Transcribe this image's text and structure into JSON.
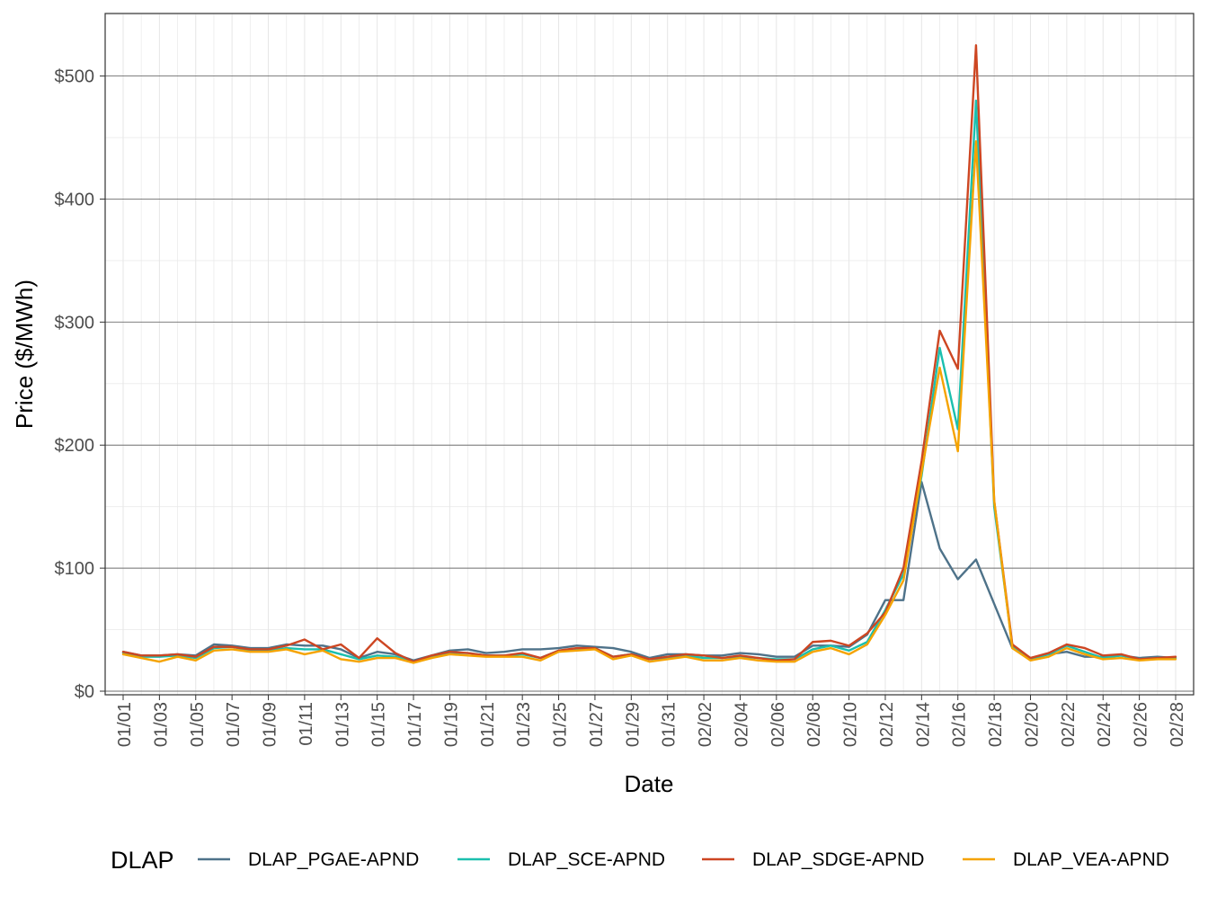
{
  "chart_data": {
    "type": "line",
    "xlabel": "Date",
    "ylabel": "Price ($/MWh)",
    "ylim": [
      0,
      550
    ],
    "y_ticks": [
      0,
      100,
      200,
      300,
      400,
      500
    ],
    "y_tick_labels": [
      "$0",
      "$100",
      "$200",
      "$300",
      "$400",
      "$500"
    ],
    "x_tick_labels": [
      "01/01",
      "01/03",
      "01/05",
      "01/07",
      "01/09",
      "01/11",
      "01/13",
      "01/15",
      "01/17",
      "01/19",
      "01/21",
      "01/23",
      "01/25",
      "01/27",
      "01/29",
      "01/31",
      "02/02",
      "02/04",
      "02/06",
      "02/08",
      "02/10",
      "02/12",
      "02/14",
      "02/16",
      "02/18",
      "02/20",
      "02/22",
      "02/24",
      "02/26",
      "02/28"
    ],
    "x": [
      "01/01",
      "01/02",
      "01/03",
      "01/04",
      "01/05",
      "01/06",
      "01/07",
      "01/08",
      "01/09",
      "01/10",
      "01/11",
      "01/12",
      "01/13",
      "01/14",
      "01/15",
      "01/16",
      "01/17",
      "01/18",
      "01/19",
      "01/20",
      "01/21",
      "01/22",
      "01/23",
      "01/24",
      "01/25",
      "01/26",
      "01/27",
      "01/28",
      "01/29",
      "01/30",
      "01/31",
      "02/01",
      "02/02",
      "02/03",
      "02/04",
      "02/05",
      "02/06",
      "02/07",
      "02/08",
      "02/09",
      "02/10",
      "02/11",
      "02/12",
      "02/13",
      "02/14",
      "02/15",
      "02/16",
      "02/17",
      "02/18",
      "02/19",
      "02/20",
      "02/21",
      "02/22",
      "02/23",
      "02/24",
      "02/25",
      "02/26",
      "02/27",
      "02/28"
    ],
    "grid": true,
    "legend_position": "bottom",
    "legend_title": "DLAP",
    "series": [
      {
        "name": "DLAP_PGAE-APND",
        "color": "#4e7289",
        "values": [
          32,
          29,
          29,
          30,
          29,
          38,
          37,
          35,
          35,
          38,
          37,
          37,
          34,
          27,
          32,
          30,
          25,
          29,
          33,
          34,
          31,
          32,
          34,
          34,
          35,
          37,
          36,
          35,
          32,
          27,
          30,
          30,
          29,
          29,
          31,
          30,
          28,
          28,
          37,
          37,
          36,
          46,
          74,
          74,
          170,
          116,
          91,
          107,
          71,
          35,
          27,
          30,
          32,
          28,
          28,
          29,
          27,
          28,
          27
        ]
      },
      {
        "name": "DLAP_SCE-APND",
        "color": "#1bbfae",
        "values": [
          31,
          28,
          28,
          29,
          27,
          35,
          36,
          33,
          33,
          35,
          34,
          34,
          30,
          26,
          29,
          28,
          24,
          28,
          31,
          31,
          29,
          29,
          30,
          27,
          33,
          34,
          35,
          28,
          30,
          26,
          27,
          29,
          27,
          27,
          28,
          27,
          26,
          26,
          34,
          37,
          33,
          40,
          66,
          95,
          175,
          279,
          213,
          480,
          150,
          37,
          26,
          30,
          37,
          32,
          27,
          29,
          26,
          27,
          27
        ]
      },
      {
        "name": "DLAP_SDGE-APND",
        "color": "#cd4622",
        "values": [
          32,
          29,
          29,
          30,
          28,
          36,
          36,
          34,
          34,
          37,
          42,
          34,
          38,
          27,
          43,
          31,
          24,
          29,
          32,
          31,
          29,
          29,
          31,
          27,
          33,
          35,
          35,
          28,
          30,
          26,
          28,
          30,
          29,
          27,
          29,
          27,
          25,
          26,
          40,
          41,
          37,
          47,
          64,
          100,
          187,
          293,
          262,
          525,
          155,
          38,
          27,
          31,
          38,
          35,
          29,
          30,
          26,
          27,
          28
        ]
      },
      {
        "name": "DLAP_VEA-APND",
        "color": "#f5a300",
        "values": [
          30,
          27,
          24,
          28,
          25,
          33,
          34,
          32,
          32,
          34,
          30,
          33,
          26,
          24,
          27,
          27,
          23,
          27,
          30,
          29,
          28,
          28,
          28,
          25,
          32,
          33,
          34,
          26,
          29,
          24,
          26,
          28,
          25,
          25,
          27,
          25,
          24,
          24,
          32,
          35,
          30,
          38,
          62,
          90,
          178,
          263,
          195,
          447,
          155,
          35,
          25,
          28,
          35,
          30,
          26,
          27,
          25,
          26,
          26
        ]
      }
    ]
  }
}
